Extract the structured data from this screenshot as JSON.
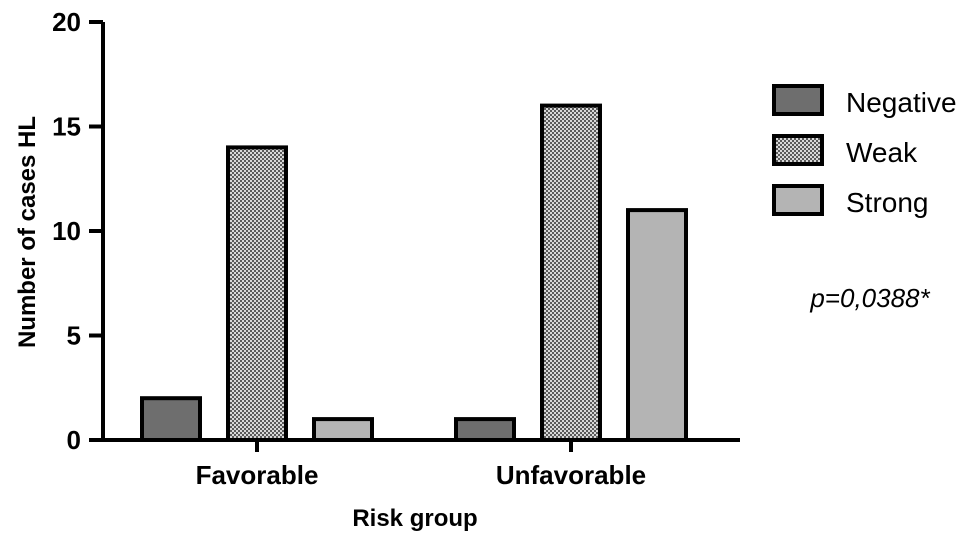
{
  "chart_data": {
    "type": "bar",
    "categories": [
      "Favorable",
      "Unfavorable"
    ],
    "series": [
      {
        "name": "Negative",
        "values": [
          2,
          1
        ],
        "color": "#6e6e6e",
        "pattern": "solid"
      },
      {
        "name": "Weak",
        "values": [
          14,
          16
        ],
        "color": "#8a8a8a",
        "pattern": "checkered"
      },
      {
        "name": "Strong",
        "values": [
          1,
          11
        ],
        "color": "#b4b4b4",
        "pattern": "solid"
      }
    ],
    "xlabel": "Risk group",
    "ylabel": "Number of cases HL",
    "ylim": [
      0,
      20
    ],
    "yticks": [
      0,
      5,
      10,
      15,
      20
    ],
    "grid": false,
    "legend_position": "right",
    "annotation": "p=0,0388*"
  }
}
